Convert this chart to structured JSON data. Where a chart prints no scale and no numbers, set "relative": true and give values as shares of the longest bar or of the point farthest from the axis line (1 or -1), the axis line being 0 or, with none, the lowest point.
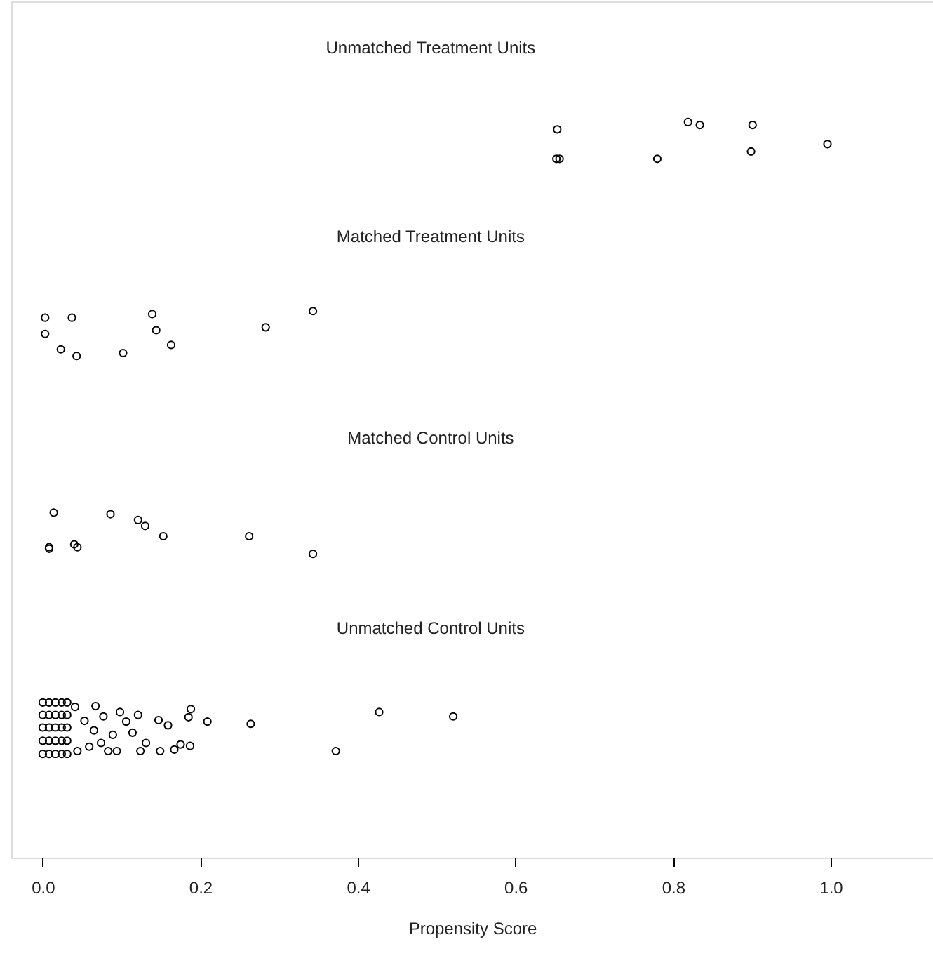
{
  "chart_data": {
    "type": "scatter",
    "relative": true,
    "xlabel": "Propensity Score",
    "xlim": [
      -0.04,
      1.13
    ],
    "xticks": [
      {
        "value": 0,
        "label": "0.0"
      },
      0.2,
      0.4,
      0.6,
      0.8,
      {
        "value": 1,
        "label": "1.0"
      }
    ],
    "grid": false,
    "marker": "circle",
    "annotations": [
      "Unmatched Treatment Units",
      "Matched Treatment Units",
      "Matched Control Units",
      "Unmatched Control Units"
    ],
    "series": [
      {
        "color": "#000000",
        "x": [
          0.653,
          0.652,
          0.656,
          0.78,
          0.819,
          0.834,
          0.901,
          0.899,
          0.996
        ],
        "values": [
          0.99,
          0.95,
          0.95,
          0.95,
          1.0,
          0.996,
          0.996,
          0.96,
          0.97
        ]
      },
      {
        "color": "#000000",
        "x": [
          0.003,
          0.037,
          0.003,
          0.023,
          0.043,
          0.102,
          0.139,
          0.144,
          0.163,
          0.283,
          0.343
        ],
        "values": [
          0.734,
          0.734,
          0.712,
          0.691,
          0.682,
          0.686,
          0.739,
          0.717,
          0.697,
          0.721,
          0.743
        ]
      },
      {
        "color": "#000000",
        "x": [
          0.014,
          0.008,
          0.008,
          0.04,
          0.044,
          0.086,
          0.121,
          0.13,
          0.153,
          0.262,
          0.343
        ],
        "values": [
          0.469,
          0.422,
          0.42,
          0.426,
          0.422,
          0.467,
          0.459,
          0.451,
          0.437,
          0.437,
          0.413
        ]
      },
      {
        "color": "#000000",
        "x": [
          0.067,
          0.098,
          0.121,
          0.106,
          0.114,
          0.147,
          0.159,
          0.188,
          0.185,
          0.209,
          0.264,
          0.427,
          0.521,
          0.372,
          0.124,
          0.131,
          0.149,
          0.167,
          0.175,
          0.187,
          0.094,
          0.083,
          0.074,
          0.089,
          0.059,
          0.053,
          0.065,
          0.077,
          0.041,
          0.044,
          0.0,
          0.008,
          0.016,
          0.024,
          0.031,
          0.0,
          0.008,
          0.016,
          0.024,
          0.031,
          0.0,
          0.008,
          0.016,
          0.024,
          0.031,
          0.0,
          0.008,
          0.016,
          0.024,
          0.031,
          0.0,
          0.008,
          0.016,
          0.024,
          0.031
        ],
        "values": [
          0.206,
          0.198,
          0.194,
          0.185,
          0.17,
          0.187,
          0.18,
          0.202,
          0.191,
          0.185,
          0.182,
          0.198,
          0.192,
          0.145,
          0.145,
          0.156,
          0.145,
          0.147,
          0.154,
          0.152,
          0.145,
          0.145,
          0.156,
          0.167,
          0.151,
          0.186,
          0.173,
          0.192,
          0.205,
          0.145,
          0.211,
          0.211,
          0.211,
          0.211,
          0.211,
          0.194,
          0.194,
          0.194,
          0.194,
          0.194,
          0.177,
          0.177,
          0.177,
          0.177,
          0.177,
          0.159,
          0.159,
          0.159,
          0.159,
          0.159,
          0.141,
          0.141,
          0.141,
          0.141,
          0.141
        ]
      }
    ]
  }
}
